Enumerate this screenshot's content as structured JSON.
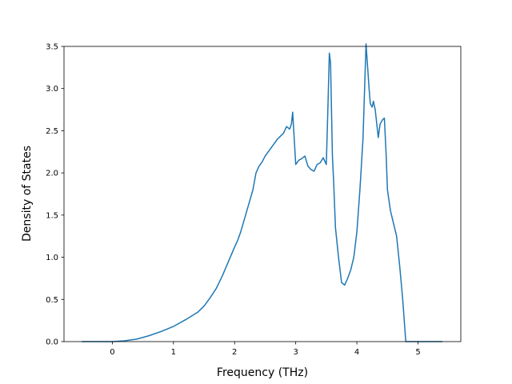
{
  "chart_data": {
    "type": "line",
    "title": "",
    "xlabel": "Frequency (THz)",
    "ylabel": "Density of States",
    "xlim": [
      -0.79,
      5.7
    ],
    "ylim": [
      0.0,
      3.5
    ],
    "xticks": [
      0,
      1,
      2,
      3,
      4,
      5
    ],
    "yticks": [
      0.0,
      0.5,
      1.0,
      1.5,
      2.0,
      2.5,
      3.0,
      3.5
    ],
    "xtick_labels": [
      "0",
      "1",
      "2",
      "3",
      "4",
      "5"
    ],
    "ytick_labels": [
      "0.0",
      "0.5",
      "1.0",
      "1.5",
      "2.0",
      "2.5",
      "3.0",
      "3.5"
    ],
    "grid": false,
    "legend": "none",
    "color": "#1f77b4",
    "series": [
      {
        "x": [
          -0.5,
          0.0,
          0.2,
          0.4,
          0.6,
          0.8,
          1.0,
          1.2,
          1.4,
          1.5,
          1.6,
          1.7,
          1.8,
          1.9,
          2.0,
          2.05,
          2.1,
          2.2,
          2.3,
          2.35,
          2.4,
          2.45,
          2.5,
          2.6,
          2.7,
          2.8,
          2.85,
          2.9,
          2.93,
          2.95,
          3.0,
          3.05,
          3.1,
          3.15,
          3.2,
          3.25,
          3.3,
          3.35,
          3.4,
          3.45,
          3.5,
          3.52,
          3.55,
          3.57,
          3.6,
          3.62,
          3.65,
          3.7,
          3.75,
          3.8,
          3.85,
          3.9,
          3.95,
          4.0,
          4.05,
          4.1,
          4.15,
          4.2,
          4.22,
          4.25,
          4.27,
          4.3,
          4.35,
          4.38,
          4.42,
          4.45,
          4.48,
          4.5,
          4.55,
          4.6,
          4.65,
          4.7,
          4.75,
          4.8,
          4.85,
          4.9,
          4.95,
          5.0,
          5.4
        ],
        "y": [
          0.0,
          0.0,
          0.01,
          0.03,
          0.07,
          0.12,
          0.18,
          0.26,
          0.35,
          0.42,
          0.52,
          0.63,
          0.78,
          0.95,
          1.12,
          1.2,
          1.3,
          1.55,
          1.8,
          2.0,
          2.08,
          2.13,
          2.2,
          2.3,
          2.4,
          2.47,
          2.55,
          2.52,
          2.58,
          2.72,
          2.1,
          2.15,
          2.17,
          2.2,
          2.08,
          2.04,
          2.02,
          2.1,
          2.12,
          2.18,
          2.1,
          2.6,
          3.42,
          3.3,
          2.2,
          1.9,
          1.35,
          1.0,
          0.7,
          0.67,
          0.75,
          0.85,
          1.0,
          1.3,
          1.8,
          2.4,
          3.53,
          3.0,
          2.82,
          2.78,
          2.85,
          2.75,
          2.42,
          2.58,
          2.63,
          2.65,
          2.2,
          1.8,
          1.55,
          1.4,
          1.25,
          0.9,
          0.5,
          0.0,
          0.0,
          0.0,
          0.0,
          0.0,
          0.0
        ]
      }
    ]
  }
}
